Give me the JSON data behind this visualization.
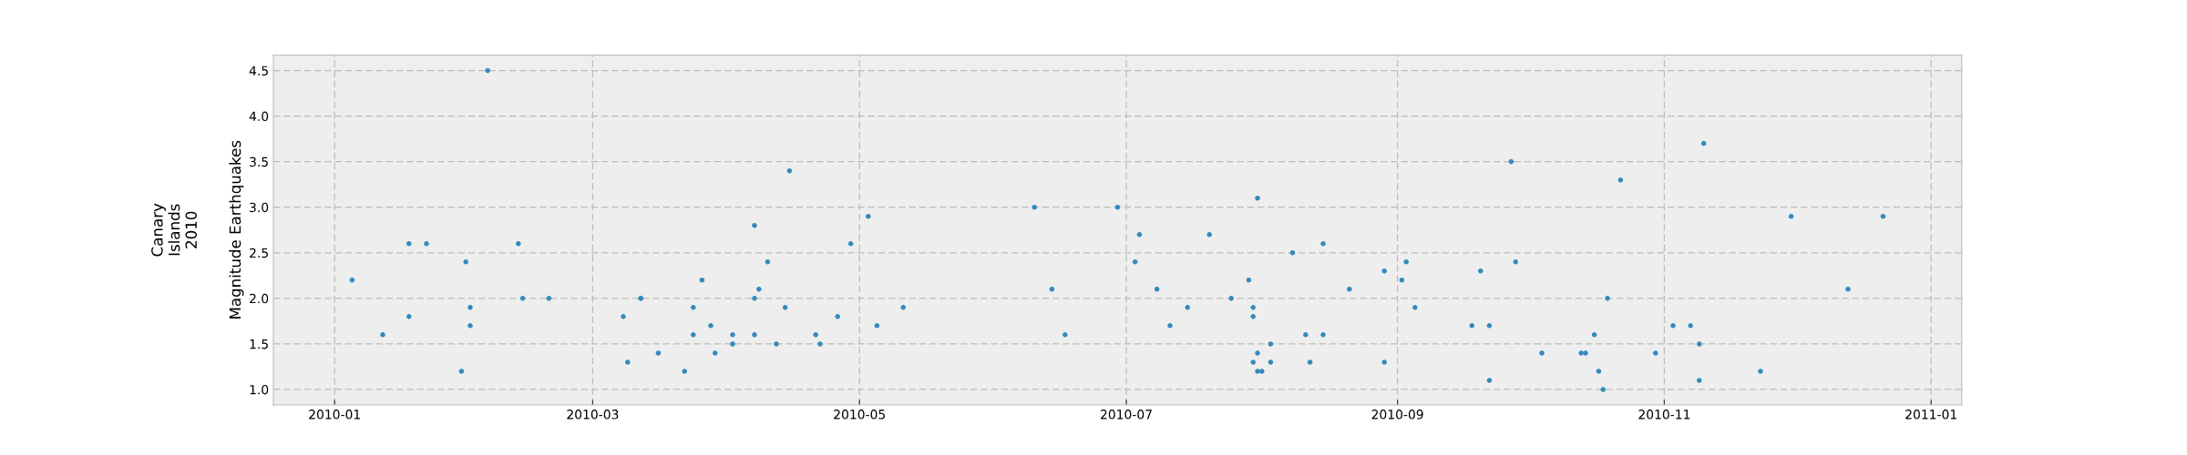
{
  "chart_data": {
    "type": "scatter",
    "ylabel": "Magnitude Earthquakes",
    "annotations": [
      "Canary\nIslands\n2010"
    ],
    "x": [
      "2010-01-05",
      "2010-01-12",
      "2010-01-18",
      "2010-01-18",
      "2010-01-22",
      "2010-01-30",
      "2010-01-31",
      "2010-02-01",
      "2010-02-01",
      "2010-02-05",
      "2010-02-12",
      "2010-02-13",
      "2010-02-19",
      "2010-03-08",
      "2010-03-09",
      "2010-03-12",
      "2010-03-12",
      "2010-03-16",
      "2010-03-22",
      "2010-03-24",
      "2010-03-24",
      "2010-03-26",
      "2010-03-28",
      "2010-03-29",
      "2010-04-02",
      "2010-04-02",
      "2010-04-07",
      "2010-04-07",
      "2010-04-07",
      "2010-04-08",
      "2010-04-10",
      "2010-04-12",
      "2010-04-14",
      "2010-04-15",
      "2010-04-21",
      "2010-04-22",
      "2010-04-26",
      "2010-04-29",
      "2010-05-03",
      "2010-05-05",
      "2010-05-11",
      "2010-06-10",
      "2010-06-14",
      "2010-06-17",
      "2010-06-29",
      "2010-07-03",
      "2010-07-04",
      "2010-07-08",
      "2010-07-11",
      "2010-07-15",
      "2010-07-20",
      "2010-07-25",
      "2010-07-29",
      "2010-07-30",
      "2010-07-30",
      "2010-07-30",
      "2010-07-31",
      "2010-07-31",
      "2010-07-31",
      "2010-08-01",
      "2010-08-03",
      "2010-08-03",
      "2010-08-08",
      "2010-08-11",
      "2010-08-12",
      "2010-08-15",
      "2010-08-15",
      "2010-08-21",
      "2010-08-29",
      "2010-08-29",
      "2010-09-02",
      "2010-09-03",
      "2010-09-05",
      "2010-09-18",
      "2010-09-20",
      "2010-09-22",
      "2010-09-22",
      "2010-09-27",
      "2010-09-28",
      "2010-10-04",
      "2010-10-13",
      "2010-10-14",
      "2010-10-16",
      "2010-10-17",
      "2010-10-18",
      "2010-10-19",
      "2010-10-22",
      "2010-10-30",
      "2010-11-03",
      "2010-11-07",
      "2010-11-09",
      "2010-11-09",
      "2010-11-10",
      "2010-11-23",
      "2010-11-30",
      "2010-12-13",
      "2010-12-21"
    ],
    "series": [
      {
        "color": "#348abd",
        "values": [
          2.2,
          1.6,
          1.8,
          2.6,
          2.6,
          1.2,
          2.4,
          1.9,
          1.7,
          4.5,
          2.6,
          2.0,
          2.0,
          1.8,
          1.3,
          2.0,
          2.0,
          1.4,
          1.2,
          1.9,
          1.6,
          2.2,
          1.7,
          1.4,
          1.6,
          1.5,
          2.0,
          2.8,
          1.6,
          2.1,
          2.4,
          1.5,
          1.9,
          3.4,
          1.6,
          1.5,
          1.8,
          2.6,
          2.9,
          1.7,
          1.9,
          3.0,
          2.1,
          1.6,
          3.0,
          2.4,
          2.7,
          2.1,
          1.7,
          1.9,
          2.7,
          2.0,
          2.2,
          1.9,
          1.8,
          1.3,
          3.1,
          1.4,
          1.2,
          1.2,
          1.5,
          1.3,
          2.5,
          1.6,
          1.3,
          2.6,
          1.6,
          2.1,
          2.3,
          1.3,
          2.2,
          2.4,
          1.9,
          1.7,
          2.3,
          1.7,
          1.1,
          3.5,
          2.4,
          1.4,
          1.4,
          1.4,
          1.6,
          1.2,
          1.0,
          2.0,
          3.3,
          1.4,
          1.7,
          1.7,
          1.1,
          1.5,
          3.7,
          1.2,
          2.9,
          2.1,
          2.9
        ]
      }
    ],
    "marker": "circle",
    "xlim": [
      "2009-12-18",
      "2011-01-08"
    ],
    "xticks": [
      {
        "value": "2010-01-01",
        "label": "2010-01"
      },
      {
        "value": "2010-03-01",
        "label": "2010-03"
      },
      {
        "value": "2010-05-01",
        "label": "2010-05"
      },
      {
        "value": "2010-07-01",
        "label": "2010-07"
      },
      {
        "value": "2010-09-01",
        "label": "2010-09"
      },
      {
        "value": "2010-11-01",
        "label": "2010-11"
      },
      {
        "value": "2011-01-01",
        "label": "2011-01"
      }
    ],
    "ylim": [
      0.83,
      4.67
    ],
    "yticks": [
      {
        "value": 1.0,
        "label": "1.0"
      },
      {
        "value": 1.5,
        "label": "1.5"
      },
      {
        "value": 2.0,
        "label": "2.0"
      },
      {
        "value": 2.5,
        "label": "2.5"
      },
      {
        "value": 3.0,
        "label": "3.0"
      },
      {
        "value": 3.5,
        "label": "3.5"
      },
      {
        "value": 4.0,
        "label": "4.0"
      },
      {
        "value": 4.5,
        "label": "4.5"
      }
    ],
    "grid": true
  }
}
